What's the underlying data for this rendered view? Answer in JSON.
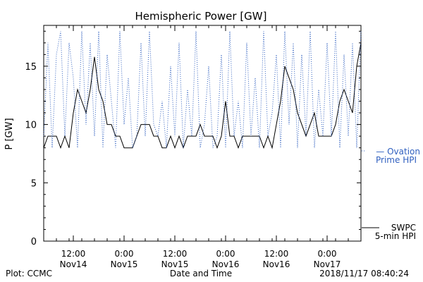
{
  "chart_data": {
    "type": "line",
    "title": "Hemispheric Power [GW]",
    "xlabel": "Date and Time",
    "ylabel": "P [GW]",
    "ylim": [
      0,
      18.5
    ],
    "xlim": [
      "2018-11-14 05:00",
      "2018-11-17 08:00"
    ],
    "y_ticks": [
      0,
      5,
      10,
      15
    ],
    "x_ticks": [
      {
        "time": "2018-11-14 12:00",
        "label1": "12:00",
        "label2": "Nov14"
      },
      {
        "time": "2018-11-15 00:00",
        "label1": "0:00",
        "label2": "Nov15"
      },
      {
        "time": "2018-11-15 12:00",
        "label1": "12:00",
        "label2": "Nov15"
      },
      {
        "time": "2018-11-16 00:00",
        "label1": "0:00",
        "label2": "Nov16"
      },
      {
        "time": "2018-11-16 12:00",
        "label1": "12:00",
        "label2": "Nov16"
      },
      {
        "time": "2018-11-17 00:00",
        "label1": "0:00",
        "label2": "Nov17"
      }
    ],
    "grid": false,
    "series": [
      {
        "name": "SWPC 5-min HPI",
        "legend_lines": [
          "SWPC",
          "5-min HPI"
        ],
        "color": "#000000",
        "style": "solid",
        "x": [
          "2018-11-14 05:00",
          "2018-11-14 06:00",
          "2018-11-14 07:00",
          "2018-11-14 08:00",
          "2018-11-14 09:00",
          "2018-11-14 10:00",
          "2018-11-14 11:00",
          "2018-11-14 12:00",
          "2018-11-14 13:00",
          "2018-11-14 14:00",
          "2018-11-14 15:00",
          "2018-11-14 16:00",
          "2018-11-14 17:00",
          "2018-11-14 18:00",
          "2018-11-14 19:00",
          "2018-11-14 20:00",
          "2018-11-14 21:00",
          "2018-11-14 22:00",
          "2018-11-14 23:00",
          "2018-11-15 00:00",
          "2018-11-15 01:00",
          "2018-11-15 02:00",
          "2018-11-15 03:00",
          "2018-11-15 04:00",
          "2018-11-15 05:00",
          "2018-11-15 06:00",
          "2018-11-15 07:00",
          "2018-11-15 08:00",
          "2018-11-15 09:00",
          "2018-11-15 10:00",
          "2018-11-15 11:00",
          "2018-11-15 12:00",
          "2018-11-15 13:00",
          "2018-11-15 14:00",
          "2018-11-15 15:00",
          "2018-11-15 16:00",
          "2018-11-15 17:00",
          "2018-11-15 18:00",
          "2018-11-15 19:00",
          "2018-11-15 20:00",
          "2018-11-15 21:00",
          "2018-11-15 22:00",
          "2018-11-15 23:00",
          "2018-11-16 00:00",
          "2018-11-16 01:00",
          "2018-11-16 02:00",
          "2018-11-16 03:00",
          "2018-11-16 04:00",
          "2018-11-16 05:00",
          "2018-11-16 06:00",
          "2018-11-16 07:00",
          "2018-11-16 08:00",
          "2018-11-16 09:00",
          "2018-11-16 10:00",
          "2018-11-16 11:00",
          "2018-11-16 12:00",
          "2018-11-16 13:00",
          "2018-11-16 14:00",
          "2018-11-16 15:00",
          "2018-11-16 16:00",
          "2018-11-16 17:00",
          "2018-11-16 18:00",
          "2018-11-16 19:00",
          "2018-11-16 20:00",
          "2018-11-16 21:00",
          "2018-11-16 22:00",
          "2018-11-16 23:00",
          "2018-11-17 00:00",
          "2018-11-17 01:00",
          "2018-11-17 02:00",
          "2018-11-17 03:00",
          "2018-11-17 04:00",
          "2018-11-17 05:00",
          "2018-11-17 06:00",
          "2018-11-17 07:00",
          "2018-11-17 08:00"
        ],
        "values": [
          8,
          9,
          9,
          9,
          8,
          9,
          8,
          11,
          13,
          12,
          11,
          13,
          15.8,
          13,
          12,
          10,
          10,
          9,
          9,
          8,
          8,
          8,
          9,
          10,
          10,
          10,
          9,
          9,
          8,
          8,
          9,
          8,
          9,
          8,
          9,
          9,
          9,
          10,
          9,
          9,
          9,
          8,
          9,
          12,
          9,
          9,
          8,
          9,
          9,
          9,
          9,
          9,
          8,
          9,
          8,
          10,
          12,
          15,
          14,
          13,
          11,
          10,
          9,
          10,
          11,
          9,
          9,
          9,
          9,
          10,
          12,
          13,
          12,
          11,
          15,
          17
        ]
      },
      {
        "name": "Ovation Prime HPI",
        "legend_lines": [
          "— Ovation",
          "Prime HPI"
        ],
        "color": "#2f5fbf",
        "style": "dotted",
        "x": [
          "2018-11-14 05:00",
          "2018-11-14 06:00",
          "2018-11-14 07:00",
          "2018-11-14 08:00",
          "2018-11-14 09:00",
          "2018-11-14 10:00",
          "2018-11-14 11:00",
          "2018-11-14 12:00",
          "2018-11-14 13:00",
          "2018-11-14 14:00",
          "2018-11-14 15:00",
          "2018-11-14 16:00",
          "2018-11-14 17:00",
          "2018-11-14 18:00",
          "2018-11-14 19:00",
          "2018-11-14 20:00",
          "2018-11-14 21:00",
          "2018-11-14 22:00",
          "2018-11-14 23:00",
          "2018-11-15 00:00",
          "2018-11-15 01:00",
          "2018-11-15 02:00",
          "2018-11-15 03:00",
          "2018-11-15 04:00",
          "2018-11-15 05:00",
          "2018-11-15 06:00",
          "2018-11-15 07:00",
          "2018-11-15 08:00",
          "2018-11-15 09:00",
          "2018-11-15 10:00",
          "2018-11-15 11:00",
          "2018-11-15 12:00",
          "2018-11-15 13:00",
          "2018-11-15 14:00",
          "2018-11-15 15:00",
          "2018-11-15 16:00",
          "2018-11-15 17:00",
          "2018-11-15 18:00",
          "2018-11-15 19:00",
          "2018-11-15 20:00",
          "2018-11-15 21:00",
          "2018-11-15 22:00",
          "2018-11-15 23:00",
          "2018-11-16 00:00",
          "2018-11-16 01:00",
          "2018-11-16 02:00",
          "2018-11-16 03:00",
          "2018-11-16 04:00",
          "2018-11-16 05:00",
          "2018-11-16 06:00",
          "2018-11-16 07:00",
          "2018-11-16 08:00",
          "2018-11-16 09:00",
          "2018-11-16 10:00",
          "2018-11-16 11:00",
          "2018-11-16 12:00",
          "2018-11-16 13:00",
          "2018-11-16 14:00",
          "2018-11-16 15:00",
          "2018-11-16 16:00",
          "2018-11-16 17:00",
          "2018-11-16 18:00",
          "2018-11-16 19:00",
          "2018-11-16 20:00",
          "2018-11-16 21:00",
          "2018-11-16 22:00",
          "2018-11-16 23:00",
          "2018-11-17 00:00",
          "2018-11-17 01:00",
          "2018-11-17 02:00",
          "2018-11-17 03:00",
          "2018-11-17 04:00",
          "2018-11-17 05:00",
          "2018-11-17 06:00",
          "2018-11-17 07:00",
          "2018-11-17 08:00"
        ],
        "values": [
          9,
          17,
          8,
          16,
          18,
          9,
          17,
          14,
          8,
          18,
          10,
          17,
          9,
          18,
          8,
          16,
          12,
          8,
          18,
          10,
          14,
          8,
          9,
          17,
          9,
          18,
          10,
          9,
          12,
          8,
          15,
          9,
          17,
          8,
          13,
          9,
          18,
          8,
          10,
          15,
          8,
          9,
          16,
          8,
          18,
          9,
          12,
          8,
          17,
          9,
          14,
          8,
          18,
          9,
          11,
          16,
          8,
          18,
          10,
          17,
          8,
          16,
          9,
          18,
          8,
          13,
          9,
          17,
          9,
          18,
          8,
          16,
          9,
          17,
          8,
          18
        ]
      }
    ]
  },
  "footer": {
    "left": "Plot: CCMC",
    "center": "Date and Time",
    "right": "2018/11/17 08:40:24"
  },
  "colors": {
    "swpc_line": "#000000",
    "ovation_line": "#2f5fbf",
    "axis": "#000000"
  }
}
